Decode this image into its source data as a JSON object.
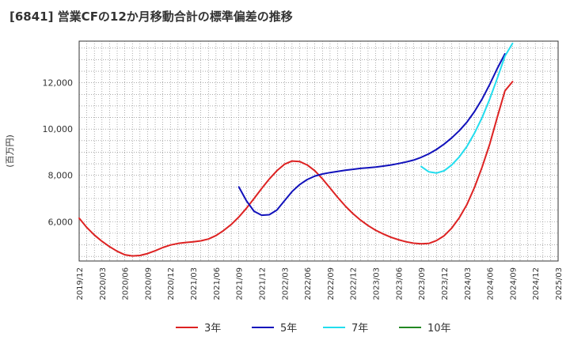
{
  "chart_data": {
    "type": "line",
    "title": "[6841]  営業CFの12か月移動合計の標準偏差の推移",
    "ylabel": "(百万円)",
    "xlabel": "",
    "x_ticks": [
      "2019/12",
      "2020/03",
      "2020/06",
      "2020/09",
      "2020/12",
      "2021/03",
      "2021/06",
      "2021/09",
      "2021/12",
      "2022/03",
      "2022/06",
      "2022/09",
      "2022/12",
      "2023/03",
      "2023/06",
      "2023/09",
      "2023/12",
      "2024/03",
      "2024/06",
      "2024/09",
      "2024/12",
      "2025/03"
    ],
    "y_ticks": [
      6000,
      8000,
      10000,
      12000
    ],
    "y_tick_labels": [
      "6,000",
      "8,000",
      "10,000",
      "12,000"
    ],
    "ylim": [
      4300,
      13800
    ],
    "grid": true,
    "legend_position": "bottom",
    "series": [
      {
        "name": "3年",
        "color": "#dd2222",
        "points": [
          [
            "2019/12",
            6150
          ],
          [
            "2020/01",
            5750
          ],
          [
            "2020/02",
            5420
          ],
          [
            "2020/03",
            5150
          ],
          [
            "2020/04",
            4920
          ],
          [
            "2020/05",
            4720
          ],
          [
            "2020/06",
            4570
          ],
          [
            "2020/07",
            4520
          ],
          [
            "2020/08",
            4540
          ],
          [
            "2020/09",
            4620
          ],
          [
            "2020/10",
            4740
          ],
          [
            "2020/11",
            4880
          ],
          [
            "2020/12",
            4990
          ],
          [
            "2021/01",
            5060
          ],
          [
            "2021/02",
            5100
          ],
          [
            "2021/03",
            5130
          ],
          [
            "2021/04",
            5170
          ],
          [
            "2021/05",
            5250
          ],
          [
            "2021/06",
            5400
          ],
          [
            "2021/07",
            5620
          ],
          [
            "2021/08",
            5880
          ],
          [
            "2021/09",
            6200
          ],
          [
            "2021/10",
            6580
          ],
          [
            "2021/11",
            7000
          ],
          [
            "2021/12",
            7430
          ],
          [
            "2022/01",
            7840
          ],
          [
            "2022/02",
            8200
          ],
          [
            "2022/03",
            8480
          ],
          [
            "2022/04",
            8620
          ],
          [
            "2022/05",
            8600
          ],
          [
            "2022/06",
            8450
          ],
          [
            "2022/07",
            8200
          ],
          [
            "2022/08",
            7850
          ],
          [
            "2022/09",
            7450
          ],
          [
            "2022/10",
            7050
          ],
          [
            "2022/11",
            6680
          ],
          [
            "2022/12",
            6350
          ],
          [
            "2023/01",
            6070
          ],
          [
            "2023/02",
            5830
          ],
          [
            "2023/03",
            5630
          ],
          [
            "2023/04",
            5470
          ],
          [
            "2023/05",
            5330
          ],
          [
            "2023/06",
            5220
          ],
          [
            "2023/07",
            5130
          ],
          [
            "2023/08",
            5070
          ],
          [
            "2023/09",
            5040
          ],
          [
            "2023/10",
            5060
          ],
          [
            "2023/11",
            5180
          ],
          [
            "2023/12",
            5390
          ],
          [
            "2024/01",
            5720
          ],
          [
            "2024/02",
            6170
          ],
          [
            "2024/03",
            6740
          ],
          [
            "2024/04",
            7480
          ],
          [
            "2024/05",
            8360
          ],
          [
            "2024/06",
            9350
          ],
          [
            "2024/07",
            10520
          ],
          [
            "2024/08",
            11650
          ],
          [
            "2024/09",
            12050
          ]
        ]
      },
      {
        "name": "5年",
        "color": "#1111bb",
        "points": [
          [
            "2021/09",
            7500
          ],
          [
            "2021/10",
            6900
          ],
          [
            "2021/11",
            6450
          ],
          [
            "2021/12",
            6280
          ],
          [
            "2022/01",
            6300
          ],
          [
            "2022/02",
            6500
          ],
          [
            "2022/03",
            6900
          ],
          [
            "2022/04",
            7300
          ],
          [
            "2022/05",
            7600
          ],
          [
            "2022/06",
            7820
          ],
          [
            "2022/07",
            7970
          ],
          [
            "2022/08",
            8060
          ],
          [
            "2022/09",
            8120
          ],
          [
            "2022/10",
            8170
          ],
          [
            "2022/11",
            8220
          ],
          [
            "2022/12",
            8260
          ],
          [
            "2023/01",
            8300
          ],
          [
            "2023/02",
            8330
          ],
          [
            "2023/03",
            8360
          ],
          [
            "2023/04",
            8400
          ],
          [
            "2023/05",
            8450
          ],
          [
            "2023/06",
            8510
          ],
          [
            "2023/07",
            8580
          ],
          [
            "2023/08",
            8660
          ],
          [
            "2023/09",
            8780
          ],
          [
            "2023/10",
            8930
          ],
          [
            "2023/11",
            9120
          ],
          [
            "2023/12",
            9350
          ],
          [
            "2024/01",
            9620
          ],
          [
            "2024/02",
            9930
          ],
          [
            "2024/03",
            10300
          ],
          [
            "2024/04",
            10760
          ],
          [
            "2024/05",
            11300
          ],
          [
            "2024/06",
            11930
          ],
          [
            "2024/07",
            12620
          ],
          [
            "2024/08",
            13250
          ]
        ]
      },
      {
        "name": "7年",
        "color": "#22ddee",
        "points": [
          [
            "2023/09",
            8380
          ],
          [
            "2023/10",
            8150
          ],
          [
            "2023/11",
            8100
          ],
          [
            "2023/12",
            8200
          ],
          [
            "2024/01",
            8450
          ],
          [
            "2024/02",
            8800
          ],
          [
            "2024/03",
            9250
          ],
          [
            "2024/04",
            9830
          ],
          [
            "2024/05",
            10500
          ],
          [
            "2024/06",
            11300
          ],
          [
            "2024/07",
            12200
          ],
          [
            "2024/08",
            13150
          ],
          [
            "2024/09",
            13700
          ]
        ]
      },
      {
        "name": "10年",
        "color": "#228822",
        "points": []
      }
    ]
  }
}
